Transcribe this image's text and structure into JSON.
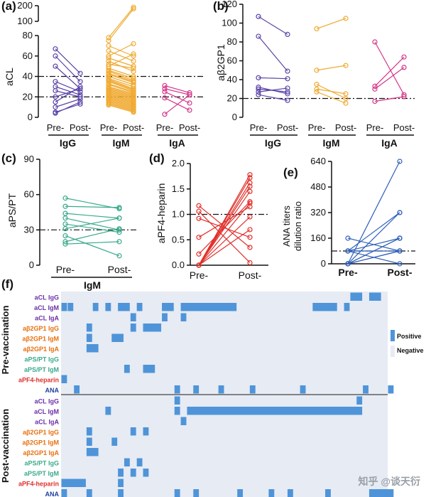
{
  "figure": {
    "watermark": "知乎 @谈天衍"
  },
  "panels": {
    "a": {
      "label": "(a)",
      "ylabel": "aCL",
      "upper_ticks": [
        "100",
        "200"
      ],
      "lower_ticks": [
        "0",
        "20",
        "40",
        "60",
        "80"
      ],
      "pair_labels": [
        "Pre-",
        "Post-"
      ],
      "group_labels": [
        "IgG",
        "IgM",
        "IgA"
      ],
      "thresholds": [
        20,
        40
      ]
    },
    "b": {
      "label": "(b)",
      "ylabel": "aβ2GP1",
      "ticks": [
        "0",
        "20",
        "40",
        "60",
        "80",
        "100",
        "120"
      ],
      "pair_labels": [
        "Pre-",
        "Post-"
      ],
      "group_labels": [
        "IgG",
        "IgM",
        "IgA"
      ],
      "thresholds": [
        20
      ]
    },
    "c": {
      "label": "(c)",
      "ylabel": "aPS/PT",
      "ticks": [
        "0",
        "30",
        "60",
        "90"
      ],
      "pair_labels": [
        "Pre-",
        "Post-"
      ],
      "group_labels": [
        "IgM"
      ],
      "thresholds": [
        30
      ]
    },
    "d": {
      "label": "(d)",
      "ylabel": "aPF4-heparin",
      "ticks": [
        "0.0",
        "0.5",
        "1.0",
        "1.5",
        "2.0"
      ],
      "pair_labels": [
        "Pre-",
        "Post-"
      ],
      "thresholds": [
        1.0
      ]
    },
    "e": {
      "label": "(e)",
      "ylabel_lines": [
        "ANA titers",
        "dilution ratio"
      ],
      "ticks": [
        "0",
        "160",
        "320",
        "480",
        "640"
      ],
      "pair_labels": [
        "Pre-",
        "Post-"
      ],
      "thresholds": [
        80
      ]
    },
    "f": {
      "label": "(f)",
      "section_labels": [
        "Pre-vaccination",
        "Post-vaccination"
      ],
      "legend": {
        "positive": "Positive",
        "negative": "Negative"
      }
    }
  },
  "chart_data": [
    {
      "panel": "a",
      "type": "line",
      "title": "",
      "ylabel": "aCL",
      "ylim": [
        0,
        200
      ],
      "axis_break": [
        80,
        100
      ],
      "groups": [
        {
          "name": "IgG",
          "color": "#5b44a8",
          "pairs": [
            [
              67,
              43
            ],
            [
              60,
              35
            ],
            [
              50,
              28
            ],
            [
              35,
              25
            ],
            [
              30,
              22
            ],
            [
              26,
              20
            ],
            [
              20,
              28
            ],
            [
              15,
              30
            ],
            [
              10,
              18
            ],
            [
              5,
              13
            ],
            [
              4,
              15
            ]
          ]
        },
        {
          "name": "IgM",
          "color": "#f0aa32",
          "pairs": [
            [
              78,
              190
            ],
            [
              75,
              180
            ],
            [
              70,
              60
            ],
            [
              65,
              55
            ],
            [
              60,
              72
            ],
            [
              58,
              50
            ],
            [
              55,
              45
            ],
            [
              52,
              48
            ],
            [
              50,
              62
            ],
            [
              48,
              40
            ],
            [
              46,
              38
            ],
            [
              45,
              36
            ],
            [
              43,
              35
            ],
            [
              42,
              34
            ],
            [
              40,
              32
            ],
            [
              38,
              30
            ],
            [
              37,
              28
            ],
            [
              36,
              27
            ],
            [
              35,
              26
            ],
            [
              33,
              25
            ],
            [
              32,
              24
            ],
            [
              30,
              23
            ],
            [
              29,
              22
            ],
            [
              28,
              21
            ],
            [
              27,
              20
            ],
            [
              26,
              19
            ],
            [
              25,
              18
            ],
            [
              24,
              17
            ],
            [
              23,
              16
            ],
            [
              22,
              15
            ],
            [
              21,
              14
            ],
            [
              20,
              13
            ],
            [
              19,
              12
            ],
            [
              18,
              11
            ],
            [
              17,
              10
            ],
            [
              16,
              9
            ],
            [
              15,
              8
            ],
            [
              14,
              7
            ],
            [
              13,
              6
            ],
            [
              12,
              5
            ]
          ]
        },
        {
          "name": "IgA",
          "color": "#d4368a",
          "pairs": [
            [
              31,
              24
            ],
            [
              28,
              22
            ],
            [
              25,
              14
            ],
            [
              19,
              7
            ],
            [
              3,
              22
            ]
          ]
        }
      ]
    },
    {
      "panel": "b",
      "type": "line",
      "title": "",
      "ylabel": "aβ2GP1",
      "ylim": [
        0,
        120
      ],
      "groups": [
        {
          "name": "IgG",
          "color": "#5b44a8",
          "pairs": [
            [
              107,
              88
            ],
            [
              86,
              49
            ],
            [
              42,
              41
            ],
            [
              32,
              25
            ],
            [
              30,
              27
            ],
            [
              27,
              31
            ],
            [
              24,
              18
            ]
          ]
        },
        {
          "name": "IgM",
          "color": "#f0aa32",
          "pairs": [
            [
              94,
              105
            ],
            [
              50,
              55
            ],
            [
              35,
              20
            ],
            [
              30,
              25
            ],
            [
              27,
              15
            ]
          ]
        },
        {
          "name": "IgA",
          "color": "#d4368a",
          "pairs": [
            [
              80,
              24
            ],
            [
              33,
              64
            ],
            [
              30,
              53
            ],
            [
              17,
              22
            ]
          ]
        }
      ]
    },
    {
      "panel": "c",
      "type": "line",
      "title": "",
      "ylabel": "aPS/PT",
      "ylim": [
        0,
        90
      ],
      "groups": [
        {
          "name": "IgM",
          "color": "#3aaa8c",
          "pairs": [
            [
              57,
              48
            ],
            [
              50,
              49
            ],
            [
              44,
              40
            ],
            [
              40,
              30
            ],
            [
              35,
              28
            ],
            [
              31,
              40
            ],
            [
              25,
              8
            ],
            [
              20,
              31
            ],
            [
              18,
              20
            ]
          ]
        }
      ]
    },
    {
      "panel": "d",
      "type": "line",
      "title": "",
      "ylabel": "aPF4-heparin",
      "ylim": [
        0,
        2.0
      ],
      "groups": [
        {
          "name": "aPF4",
          "color": "#e0302b",
          "pairs": [
            [
              1.17,
              0.35
            ],
            [
              1.06,
              0.05
            ],
            [
              0.92,
              0.55
            ],
            [
              0.55,
              1.15
            ],
            [
              0.22,
              1.25
            ],
            [
              0.0,
              1.45
            ],
            [
              0.0,
              1.55
            ],
            [
              0.0,
              1.62
            ],
            [
              0.0,
              1.72
            ],
            [
              0.0,
              1.78
            ],
            [
              0.0,
              1.22
            ],
            [
              0.0,
              0.7
            ],
            [
              0.0,
              0.95
            ]
          ]
        }
      ]
    },
    {
      "panel": "e",
      "type": "line",
      "title": "",
      "ylabel": "ANA titers dilution ratio",
      "ylim": [
        0,
        640
      ],
      "groups": [
        {
          "name": "ANA",
          "color": "#2e5fb8",
          "pairs": [
            [
              160,
              80
            ],
            [
              80,
              320
            ],
            [
              80,
              160
            ],
            [
              80,
              0
            ],
            [
              80,
              80
            ],
            [
              0,
              640
            ],
            [
              0,
              320
            ],
            [
              0,
              160
            ],
            [
              0,
              80
            ],
            [
              0,
              80
            ],
            [
              0,
              160
            ]
          ]
        }
      ]
    },
    {
      "panel": "f",
      "type": "heatmap",
      "title": "",
      "n_patients": 52,
      "colors": {
        "positive": "#4f94d8",
        "negative": "#e6ebf4"
      },
      "rows": [
        {
          "section": "pre",
          "name": "aCL IgG",
          "color": "#6a2ea8",
          "positive": [
            [
              46,
              47
            ],
            [
              49,
              50
            ]
          ]
        },
        {
          "section": "pre",
          "name": "aCL IgM",
          "color": "#6a2ea8",
          "positive": [
            [
              0,
              0
            ],
            [
              1,
              1
            ],
            [
              5,
              5
            ],
            [
              7,
              7
            ],
            [
              9,
              10
            ],
            [
              12,
              12
            ],
            [
              16,
              17
            ],
            [
              19,
              27
            ],
            [
              40,
              43
            ],
            [
              45,
              45
            ]
          ]
        },
        {
          "section": "pre",
          "name": "aCL IgA",
          "color": "#6a2ea8",
          "positive": [
            [
              11,
              11
            ],
            [
              16,
              16
            ],
            [
              19,
              19
            ]
          ]
        },
        {
          "section": "pre",
          "name": "aβ2GP1 IgG",
          "color": "#e8700e",
          "positive": [
            [
              4,
              4
            ],
            [
              11,
              11
            ],
            [
              13,
              15
            ]
          ]
        },
        {
          "section": "pre",
          "name": "aβ2GP1 IgM",
          "color": "#e8700e",
          "positive": [
            [
              4,
              4
            ],
            [
              8,
              9
            ]
          ]
        },
        {
          "section": "pre",
          "name": "aβ2GP1 IgA",
          "color": "#e8700e",
          "positive": [
            [
              4,
              5
            ]
          ]
        },
        {
          "section": "pre",
          "name": "aPS/PT IgG",
          "color": "#3aaa8c",
          "positive": []
        },
        {
          "section": "pre",
          "name": "aPS/PT IgM",
          "color": "#3aaa8c",
          "positive": [
            [
              10,
              10
            ],
            [
              13,
              14
            ]
          ]
        },
        {
          "section": "pre",
          "name": "aPF4-heparin",
          "color": "#e0302b",
          "positive": [
            [
              0,
              0
            ]
          ]
        },
        {
          "section": "pre",
          "name": "ANA",
          "color": "#1f3f9e",
          "positive": [
            [
              2,
              2
            ],
            [
              18,
              18
            ],
            [
              21,
              21
            ],
            [
              25,
              25
            ],
            [
              30,
              30
            ],
            [
              38,
              38
            ],
            [
              48,
              48
            ],
            [
              52,
              52
            ]
          ]
        },
        {
          "section": "post",
          "name": "aCL IgG",
          "color": "#6a2ea8",
          "positive": [
            [
              18,
              18
            ],
            [
              47,
              47
            ]
          ]
        },
        {
          "section": "post",
          "name": "aCL IgM",
          "color": "#6a2ea8",
          "positive": [
            [
              7,
              7
            ],
            [
              18,
              18
            ],
            [
              20,
              47
            ]
          ]
        },
        {
          "section": "post",
          "name": "aCL IgA",
          "color": "#6a2ea8",
          "positive": [
            [
              19,
              19
            ]
          ]
        },
        {
          "section": "post",
          "name": "aβ2GP1 IgG",
          "color": "#e8700e",
          "positive": [
            [
              4,
              4
            ],
            [
              11,
              11
            ],
            [
              13,
              13
            ]
          ]
        },
        {
          "section": "post",
          "name": "aβ2GP1 IgM",
          "color": "#e8700e",
          "positive": [
            [
              4,
              4
            ],
            [
              8,
              8
            ]
          ]
        },
        {
          "section": "post",
          "name": "aβ2GP1 IgA",
          "color": "#e8700e",
          "positive": [
            [
              4,
              5
            ]
          ]
        },
        {
          "section": "post",
          "name": "aPS/PT IgG",
          "color": "#3aaa8c",
          "positive": [
            [
              10,
              10
            ],
            [
              12,
              12
            ]
          ]
        },
        {
          "section": "post",
          "name": "aPS/PT IgM",
          "color": "#3aaa8c",
          "positive": [
            [
              9,
              9
            ],
            [
              11,
              11
            ],
            [
              13,
              13
            ]
          ]
        },
        {
          "section": "post",
          "name": "aPF4-heparin",
          "color": "#e0302b",
          "positive": [
            [
              0,
              3
            ],
            [
              9,
              9
            ]
          ]
        },
        {
          "section": "post",
          "name": "ANA",
          "color": "#1f3f9e",
          "positive": [
            [
              0,
              0
            ],
            [
              4,
              4
            ],
            [
              9,
              9
            ],
            [
              18,
              18
            ],
            [
              21,
              21
            ],
            [
              28,
              28
            ],
            [
              33,
              33
            ],
            [
              36,
              36
            ],
            [
              42,
              42
            ],
            [
              49,
              52
            ]
          ]
        }
      ]
    }
  ]
}
